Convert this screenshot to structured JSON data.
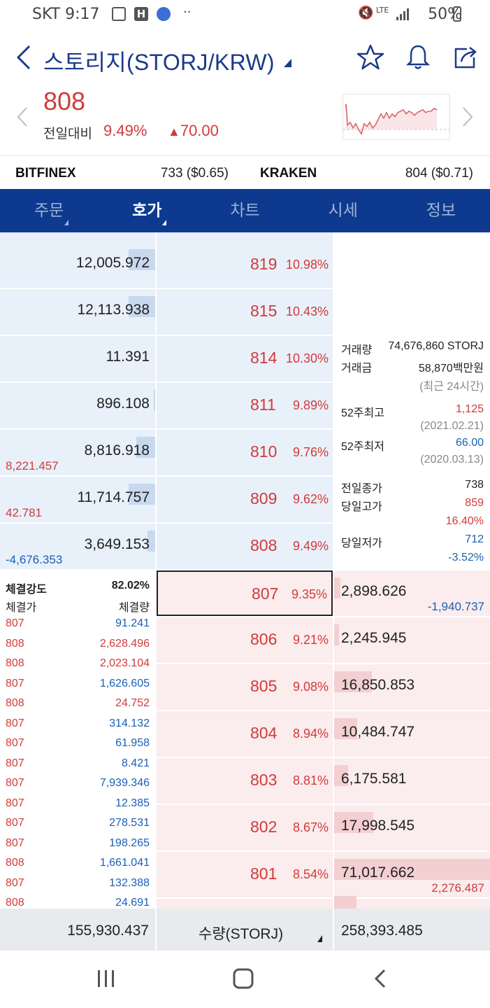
{
  "status": {
    "carrier": "SKT",
    "time": "9:17",
    "network": "LTE",
    "battery": "50%"
  },
  "header": {
    "title": "스토리지(STORJ/KRW)"
  },
  "summary": {
    "price": "808",
    "prev_label": "전일대비",
    "change_pct": "9.49%",
    "change_amt": "70.00",
    "direction": "up"
  },
  "exchanges": [
    {
      "name": "BITFINEX",
      "value": "733 ($0.65)"
    },
    {
      "name": "KRAKEN",
      "value": "804 ($0.71)"
    }
  ],
  "tabs": [
    {
      "label": "주문",
      "has_menu": true
    },
    {
      "label": "호가",
      "has_menu": true,
      "active": true
    },
    {
      "label": "차트"
    },
    {
      "label": "시세"
    },
    {
      "label": "정보"
    }
  ],
  "asks": [
    {
      "qty": "12,005.972",
      "price": "819",
      "pct": "10.98%",
      "bar": 0.17
    },
    {
      "qty": "12,113.938",
      "price": "815",
      "pct": "10.43%",
      "bar": 0.17
    },
    {
      "qty": "11.391",
      "price": "814",
      "pct": "10.30%",
      "bar": 0
    },
    {
      "qty": "896.108",
      "price": "811",
      "pct": "9.89%",
      "bar": 0.01
    },
    {
      "qty": "8,816.918",
      "price": "810",
      "pct": "9.76%",
      "bar": 0.12,
      "change": "8,221.457",
      "change_color": "red"
    },
    {
      "qty": "11,714.757",
      "price": "809",
      "pct": "9.62%",
      "bar": 0.17,
      "change": "42.781",
      "change_color": "red"
    },
    {
      "qty": "3,649.153",
      "price": "808",
      "pct": "9.49%",
      "bar": 0.05,
      "change": "-4,676.353",
      "change_color": "blue"
    }
  ],
  "bids": [
    {
      "qty": "2,898.626",
      "price": "807",
      "pct": "9.35%",
      "bar": 0.04,
      "change": "-1,940.737",
      "change_color": "blue",
      "current": true
    },
    {
      "qty": "2,245.945",
      "price": "806",
      "pct": "9.21%",
      "bar": 0.03
    },
    {
      "qty": "16,850.853",
      "price": "805",
      "pct": "9.08%",
      "bar": 0.24
    },
    {
      "qty": "10,484.747",
      "price": "804",
      "pct": "8.94%",
      "bar": 0.15
    },
    {
      "qty": "6,175.581",
      "price": "803",
      "pct": "8.81%",
      "bar": 0.09
    },
    {
      "qty": "17,998.545",
      "price": "802",
      "pct": "8.67%",
      "bar": 0.25
    },
    {
      "qty": "71,017.662",
      "price": "801",
      "pct": "8.54%",
      "bar": 1.0,
      "change": "2,276.487",
      "change_color": "red"
    }
  ],
  "info": {
    "volume_label": "거래량",
    "volume": "74,676,860 STORJ",
    "amount_label": "거래금",
    "amount": "58,870백만원",
    "period": "(최근 24시간)",
    "high52_label": "52주최고",
    "high52": "1,125",
    "high52_date": "(2021.02.21)",
    "low52_label": "52주최저",
    "low52": "66.00",
    "low52_date": "(2020.03.13)",
    "prev_close_label": "전일종가",
    "prev_close": "738",
    "day_high_label": "당일고가",
    "day_high": "859",
    "day_high_pct": "16.40%",
    "day_low_label": "당일저가",
    "day_low": "712",
    "day_low_pct": "-3.52%"
  },
  "trades": {
    "strength_label": "체결강도",
    "strength": "82.02%",
    "price_header": "체결가",
    "qty_header": "체결량",
    "rows": [
      {
        "price": "807",
        "qty": "91.241",
        "side": "sell"
      },
      {
        "price": "808",
        "qty": "2,628.496",
        "side": "buy"
      },
      {
        "price": "808",
        "qty": "2,023.104",
        "side": "buy"
      },
      {
        "price": "807",
        "qty": "1,626.605",
        "side": "sell"
      },
      {
        "price": "808",
        "qty": "24.752",
        "side": "buy"
      },
      {
        "price": "807",
        "qty": "314.132",
        "side": "sell"
      },
      {
        "price": "807",
        "qty": "61.958",
        "side": "sell"
      },
      {
        "price": "807",
        "qty": "8.421",
        "side": "sell"
      },
      {
        "price": "807",
        "qty": "7,939.346",
        "side": "sell"
      },
      {
        "price": "807",
        "qty": "12.385",
        "side": "sell"
      },
      {
        "price": "807",
        "qty": "278.531",
        "side": "sell"
      },
      {
        "price": "807",
        "qty": "198.265",
        "side": "sell"
      },
      {
        "price": "808",
        "qty": "1,661.041",
        "side": "sell"
      },
      {
        "price": "807",
        "qty": "132.388",
        "side": "sell"
      },
      {
        "price": "808",
        "qty": "24.691",
        "side": "sell"
      }
    ]
  },
  "footer": {
    "ask_total": "155,930.437",
    "unit_label": "수량(STORJ)",
    "bid_total": "258,393.485"
  },
  "colors": {
    "up": "#d23a3a",
    "down": "#1a5fb4",
    "tab_bg": "#0d3a8e",
    "ask_bg": "#e8f0fa",
    "bid_bg": "#fbeced"
  }
}
